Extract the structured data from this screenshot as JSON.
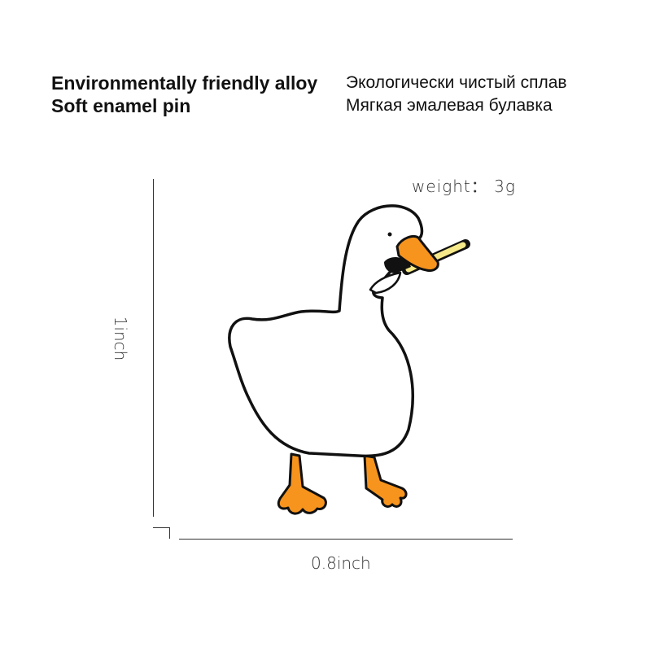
{
  "header": {
    "english": [
      "Environmentally friendly alloy",
      "Soft enamel pin"
    ],
    "russian": [
      "Экологически чистый сплав",
      "Мягкая эмалевая булавка"
    ]
  },
  "specs": {
    "weight": "weight： 3g",
    "height": "1inch",
    "width": "0.8inch"
  },
  "product": {
    "subject": "goose-pin",
    "colors": {
      "outline": "#111111",
      "body": "#ffffff",
      "beak_feet": "#f7941d",
      "stick": "#f5e98a"
    }
  }
}
